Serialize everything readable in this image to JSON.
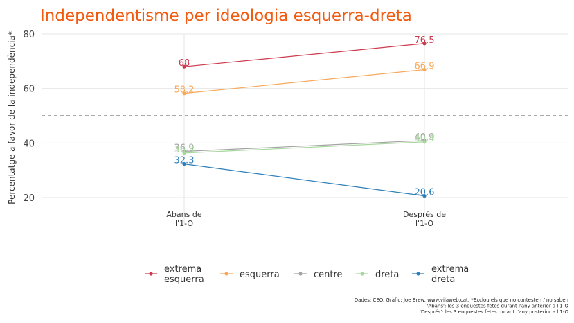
{
  "chart_data": {
    "type": "line",
    "title": "Independentisme per ideologia esquerra-dreta",
    "ylabel": "Percentatge a favor de la independència*",
    "xlabel": "",
    "categories": [
      "Abans de\nl'1-O",
      "Després de\nl'1-O"
    ],
    "ylim": [
      14,
      82
    ],
    "yticks": [
      20,
      40,
      60,
      80
    ],
    "reference_line": 50,
    "grid": true,
    "legend_position": "bottom",
    "series": [
      {
        "name": "extrema\nesquerra",
        "color": "#cc3a4e",
        "values": [
          68,
          76.5
        ],
        "labels": [
          "68",
          "76.5"
        ]
      },
      {
        "name": "esquerra",
        "color": "#f6a95c",
        "values": [
          58.2,
          66.9
        ],
        "labels": [
          "58.2",
          "66.9"
        ]
      },
      {
        "name": "centre",
        "color": "#a3a3a3",
        "values": [
          36.9,
          40.9
        ],
        "labels": [
          "36.9",
          "40.9"
        ]
      },
      {
        "name": "dreta",
        "color": "#a8d89e",
        "values": [
          36.3,
          40.4
        ],
        "labels": [
          "36.3",
          "40.4"
        ]
      },
      {
        "name": "extrema\ndreta",
        "color": "#2c7fb8",
        "values": [
          32.3,
          20.6
        ],
        "labels": [
          "32.3",
          "20.6"
        ]
      }
    ]
  },
  "caption": [
    "Dades: CEO. Gràfic: Joe Brew. www.vilaweb.cat. *Exclou els que no contesten / no saben",
    "'Abans': les 3 enquestes fetes durant l'any anterior a l'1-O",
    "'Després': les 3 enquestes fetes durant l'any posterior a l'1-O"
  ]
}
